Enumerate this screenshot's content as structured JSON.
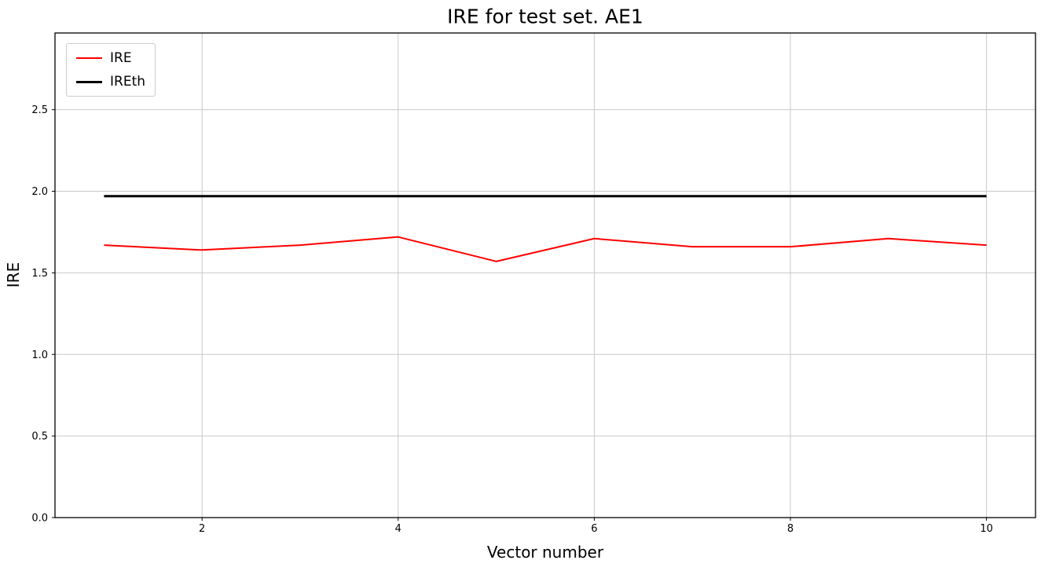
{
  "chart_data": {
    "type": "line",
    "title": "IRE for test set. AE1",
    "xlabel": "Vector number",
    "ylabel": "IRE",
    "x": [
      1,
      2,
      3,
      4,
      5,
      6,
      7,
      8,
      9,
      10
    ],
    "series": [
      {
        "name": "IRE",
        "color": "#ff0000",
        "linewidth": 2,
        "values": [
          1.67,
          1.64,
          1.67,
          1.72,
          1.57,
          1.71,
          1.66,
          1.66,
          1.71,
          1.67
        ]
      },
      {
        "name": "IREth",
        "color": "#000000",
        "linewidth": 3,
        "values": [
          1.97,
          1.97,
          1.97,
          1.97,
          1.97,
          1.97,
          1.97,
          1.97,
          1.97,
          1.97
        ]
      }
    ],
    "xlim": [
      0.5,
      10.5
    ],
    "ylim": [
      0,
      2.97
    ],
    "xticks": [
      2,
      4,
      6,
      8,
      10
    ],
    "xticklabels": [
      "2",
      "4",
      "6",
      "8",
      "10"
    ],
    "yticks": [
      0.0,
      0.5,
      1.0,
      1.5,
      2.0,
      2.5
    ],
    "yticklabels": [
      "0.0",
      "0.5",
      "1.0",
      "1.5",
      "2.0",
      "2.5"
    ],
    "grid": true,
    "grid_color": "#c9c9c9",
    "axes_edge_color": "#000000",
    "legend_position": "upper left"
  }
}
